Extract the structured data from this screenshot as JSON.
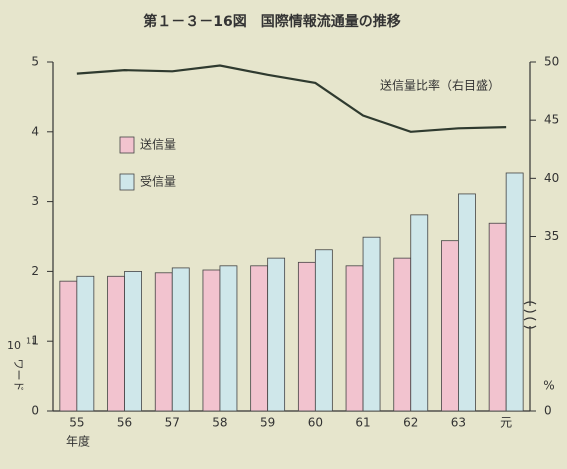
{
  "chart_data": {
    "type": "bar_line",
    "title": "第１－３－16図　国際情報流通量の推移",
    "xlabel": "年度",
    "ylabel": {
      "base": "10",
      "exp": "11",
      "unit": "ワード"
    },
    "y2label": "%",
    "annotation": "送信量比率（右目盛）",
    "categories": [
      "55",
      "56",
      "57",
      "58",
      "59",
      "60",
      "61",
      "62",
      "63",
      "元"
    ],
    "series": [
      {
        "name": "送信量",
        "color": "#f2c3cf",
        "values": [
          1.86,
          1.93,
          1.98,
          2.02,
          2.08,
          2.13,
          2.08,
          2.19,
          2.44,
          2.69
        ]
      },
      {
        "name": "受信量",
        "color": "#cfe7ea",
        "values": [
          1.93,
          2.0,
          2.05,
          2.08,
          2.19,
          2.31,
          2.49,
          2.81,
          3.11,
          3.41
        ]
      },
      {
        "name": "送信量比率",
        "color": "#2f3a2f",
        "axis": "y2",
        "kind": "line",
        "values": [
          49.0,
          49.3,
          49.2,
          49.7,
          48.9,
          48.2,
          45.4,
          44.0,
          44.3,
          44.4
        ]
      }
    ],
    "ylim": [
      0,
      5
    ],
    "yticks": [
      0,
      1,
      2,
      3,
      4,
      5
    ],
    "y2lim": [
      0,
      50
    ],
    "y2ticks": [
      0,
      35,
      40,
      45,
      50
    ],
    "y2break": [
      0,
      20
    ],
    "grid": false
  }
}
